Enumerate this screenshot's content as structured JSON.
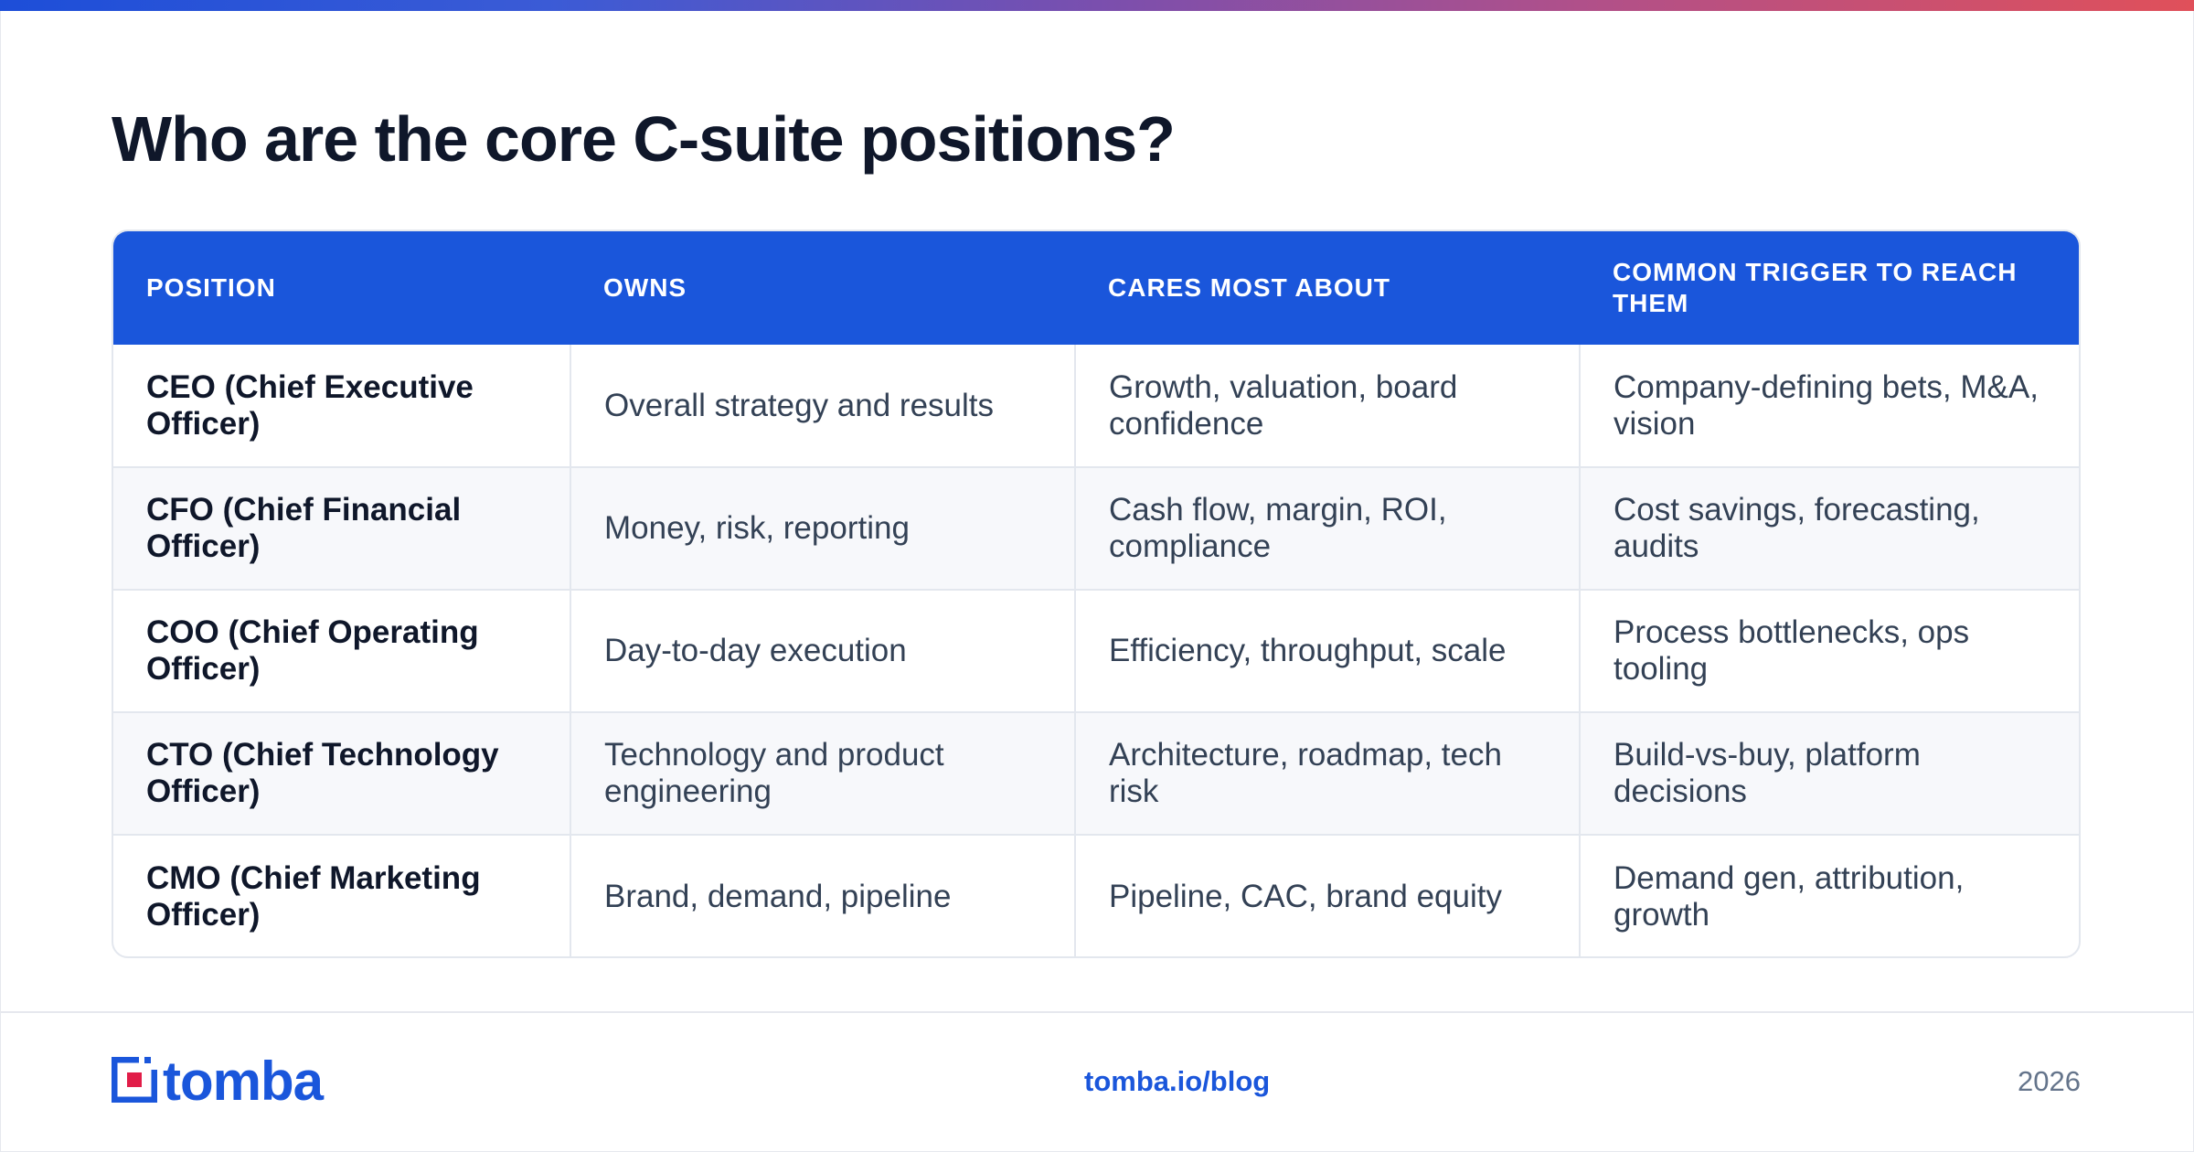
{
  "page": {
    "title": "Who are the core C-suite positions?",
    "accent_color": "#1a56db"
  },
  "table": {
    "headers": [
      "POSITION",
      "OWNS",
      "CARES MOST ABOUT",
      "COMMON TRIGGER TO REACH THEM"
    ],
    "rows": [
      [
        "CEO (Chief Executive Officer)",
        "Overall strategy and results",
        "Growth, valuation, board confidence",
        "Company-defining bets, M&A, vision"
      ],
      [
        "CFO (Chief Financial Officer)",
        "Money, risk, reporting",
        "Cash flow, margin, ROI, compliance",
        "Cost savings, forecasting, audits"
      ],
      [
        "COO (Chief Operating Officer)",
        "Day-to-day execution",
        "Efficiency, throughput, scale",
        "Process bottlenecks, ops tooling"
      ],
      [
        "CTO (Chief Technology Officer)",
        "Technology and product engineering",
        "Architecture, roadmap, tech risk",
        "Build-vs-buy, platform decisions"
      ],
      [
        "CMO (Chief Marketing Officer)",
        "Brand, demand, pipeline",
        "Pipeline, CAC, brand equity",
        "Demand gen, attribution, growth"
      ]
    ]
  },
  "footer": {
    "logo_text": "tomba",
    "logo_icon": "tomba-logo-icon",
    "link": "tomba.io/blog",
    "year": "2026"
  }
}
